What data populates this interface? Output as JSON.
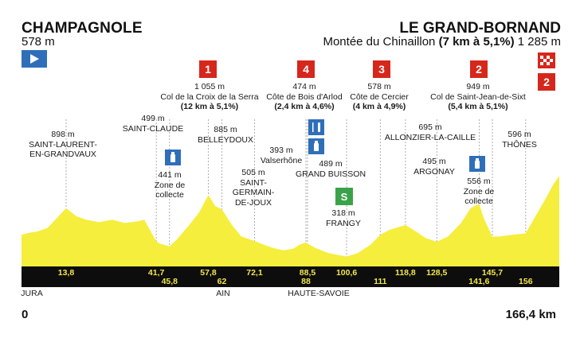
{
  "start": {
    "name": "CHAMPAGNOLE",
    "altitude": "578 m"
  },
  "finish": {
    "name": "LE GRAND-BORNAND",
    "climb_name": "Montée du Chinaillon",
    "climb_detail": "(7 km à 5,1%)",
    "altitude": "1 285 m"
  },
  "distance": {
    "start": "0",
    "total": "166,4 km"
  },
  "colors": {
    "profile": "#f5ee3c",
    "bar": "#0d0d0d",
    "tick": "#f2e64a",
    "red": "#d6271c",
    "blue": "#2f6fba",
    "green": "#3aa34a"
  },
  "regions": [
    {
      "name": "JURA",
      "km": 2
    },
    {
      "name": "AIN",
      "km": 62
    },
    {
      "name": "HAUTE-SAVOIE",
      "km": 88
    }
  ],
  "km_ticks": [
    {
      "label": "13,8",
      "km": 13.8,
      "row": 1
    },
    {
      "label": "41,7",
      "km": 41.7,
      "row": 1
    },
    {
      "label": "45,8",
      "km": 45.8,
      "row": 2
    },
    {
      "label": "57,8",
      "km": 57.8,
      "row": 1
    },
    {
      "label": "62",
      "km": 62,
      "row": 2
    },
    {
      "label": "72,1",
      "km": 72.1,
      "row": 1
    },
    {
      "label": "88",
      "km": 88,
      "row": 2
    },
    {
      "label": "88,5",
      "km": 88.5,
      "row": 1
    },
    {
      "label": "100,6",
      "km": 100.6,
      "row": 1
    },
    {
      "label": "111",
      "km": 111,
      "row": 2
    },
    {
      "label": "118,8",
      "km": 118.8,
      "row": 1
    },
    {
      "label": "128,5",
      "km": 128.5,
      "row": 1
    },
    {
      "label": "141,6",
      "km": 141.6,
      "row": 2
    },
    {
      "label": "145,7",
      "km": 145.7,
      "row": 1
    },
    {
      "label": "156",
      "km": 156,
      "row": 2
    }
  ],
  "profile_points": [
    [
      0,
      578
    ],
    [
      2,
      600
    ],
    [
      5,
      620
    ],
    [
      8,
      660
    ],
    [
      10,
      740
    ],
    [
      13.8,
      898
    ],
    [
      17,
      800
    ],
    [
      20,
      760
    ],
    [
      24,
      730
    ],
    [
      28,
      760
    ],
    [
      32,
      720
    ],
    [
      36,
      740
    ],
    [
      38,
      760
    ],
    [
      41.7,
      499
    ],
    [
      43,
      470
    ],
    [
      45.8,
      441
    ],
    [
      48,
      520
    ],
    [
      52,
      700
    ],
    [
      55,
      850
    ],
    [
      57.8,
      1055
    ],
    [
      60,
      920
    ],
    [
      62,
      885
    ],
    [
      65,
      700
    ],
    [
      68,
      560
    ],
    [
      72.1,
      505
    ],
    [
      75,
      460
    ],
    [
      78,
      420
    ],
    [
      81,
      393
    ],
    [
      84,
      410
    ],
    [
      86,
      460
    ],
    [
      88,
      489
    ],
    [
      88.5,
      474
    ],
    [
      91,
      420
    ],
    [
      95,
      360
    ],
    [
      100.6,
      318
    ],
    [
      104,
      360
    ],
    [
      108,
      460
    ],
    [
      111,
      578
    ],
    [
      114,
      640
    ],
    [
      118.8,
      695
    ],
    [
      122,
      620
    ],
    [
      125,
      540
    ],
    [
      128.5,
      495
    ],
    [
      132,
      560
    ],
    [
      136,
      720
    ],
    [
      139,
      900
    ],
    [
      141.6,
      949
    ],
    [
      143,
      780
    ],
    [
      145.7,
      556
    ],
    [
      148,
      560
    ],
    [
      152,
      580
    ],
    [
      156,
      596
    ],
    [
      159,
      800
    ],
    [
      162,
      1000
    ],
    [
      164.5,
      1180
    ],
    [
      166.4,
      1285
    ]
  ],
  "climbs": [
    {
      "km": 57.8,
      "category": "1",
      "altitude": "1 055 m",
      "name": "Col de la Croix de la Serra",
      "detail": "(12 km à 5,1%)"
    },
    {
      "km": 88.5,
      "category": "4",
      "altitude": "474 m",
      "name": "Côte de Bois d'Arlod",
      "detail": "(2,4 km à 4,6%)"
    },
    {
      "km": 111,
      "category": "3",
      "altitude": "578 m",
      "name": "Côte de Cercier",
      "detail": "(4 km à 4,9%)"
    },
    {
      "km": 141.6,
      "category": "2",
      "altitude": "949 m",
      "name": "Col de Saint-Jean-de-Sixt",
      "detail": "(5,4 km à 5,1%)"
    }
  ],
  "finish_category": "2",
  "places": [
    {
      "altitude": "898 m",
      "name": "SAINT-LAURENT-",
      "name2": "EN-GRANDVAUX"
    },
    {
      "altitude": "499 m",
      "name": "SAINT-CLAUDE"
    },
    {
      "altitude": "441 m",
      "name": "Zone de",
      "name2": "collecte"
    },
    {
      "altitude": "885 m",
      "name": "BELLEYDOUX"
    },
    {
      "altitude": "505 m",
      "name": "SAINT-",
      "name2": "GERMAIN-",
      "name3": "DE-JOUX"
    },
    {
      "altitude": "393 m",
      "name": "Valserhône"
    },
    {
      "altitude": "489 m",
      "name": "GRAND BUISSON"
    },
    {
      "altitude": "318 m",
      "name": "FRANGY"
    },
    {
      "altitude": "695 m",
      "name": "ALLONZIER-LA-CAILLE"
    },
    {
      "altitude": "495 m",
      "name": "ARGONAY"
    },
    {
      "altitude": "596 m",
      "name": "THÔNES"
    },
    {
      "altitude": "556 m",
      "name": "Zone de",
      "name2": "collecte"
    }
  ],
  "sprint_symbol": "S"
}
